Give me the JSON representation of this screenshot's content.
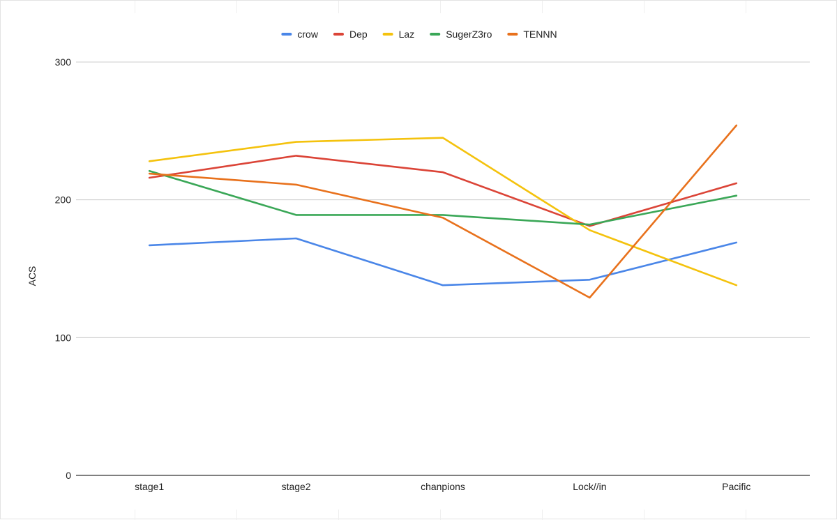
{
  "chart_data": {
    "type": "line",
    "title": "",
    "xlabel": "",
    "ylabel": "ACS",
    "ylim": [
      0,
      300
    ],
    "yticks": [
      0,
      100,
      200,
      300
    ],
    "grid": true,
    "legend_position": "top-center",
    "categories": [
      "stage1",
      "stage2",
      "chanpions",
      "Lock//in",
      "Pacific"
    ],
    "series": [
      {
        "name": "crow",
        "color": "#4a86e8",
        "values": [
          167,
          172,
          138,
          142,
          169
        ]
      },
      {
        "name": "Dep",
        "color": "#db4437",
        "values": [
          216,
          232,
          220,
          181,
          212
        ]
      },
      {
        "name": "Laz",
        "color": "#f4c20d",
        "values": [
          228,
          242,
          245,
          178,
          138
        ]
      },
      {
        "name": "SugerZ3ro",
        "color": "#3aa757",
        "values": [
          221,
          189,
          189,
          182,
          203
        ]
      },
      {
        "name": "TENNN",
        "color": "#e8711c",
        "values": [
          219,
          211,
          187,
          129,
          254
        ]
      }
    ]
  }
}
